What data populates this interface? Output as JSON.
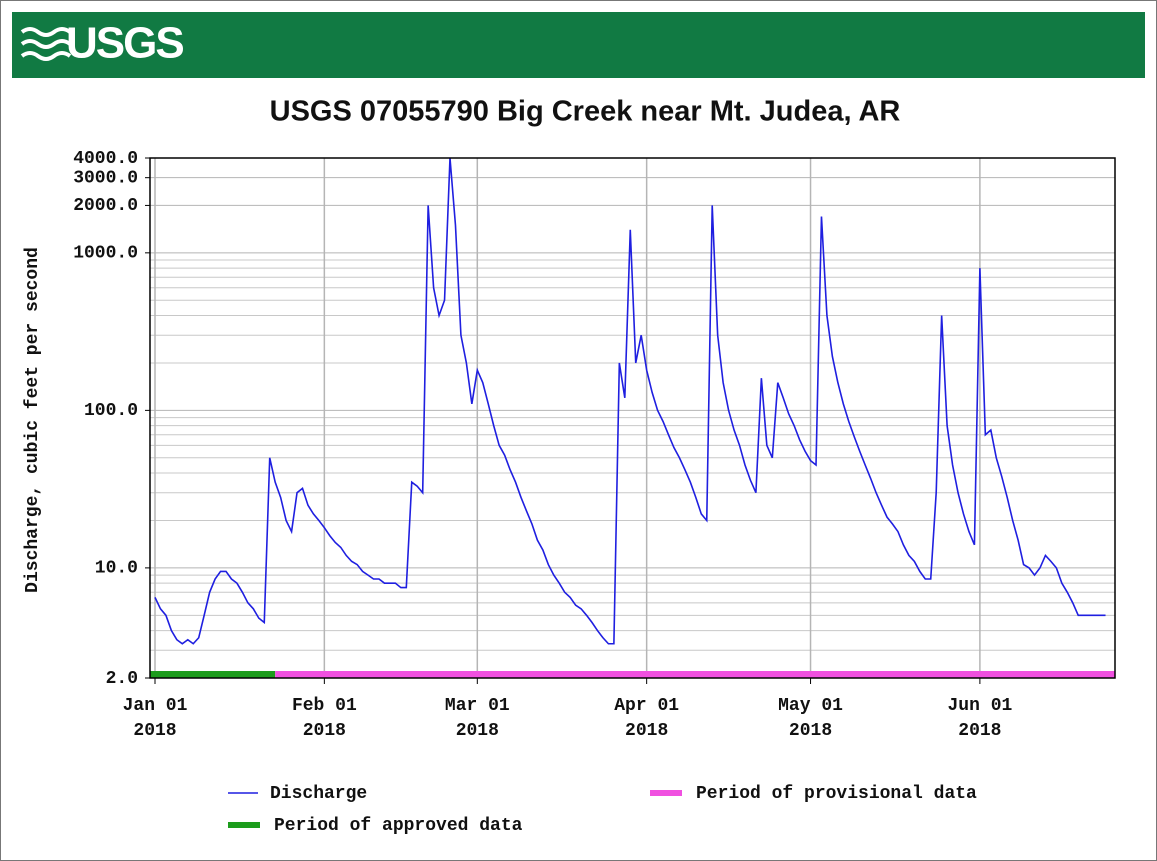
{
  "logo": "USGS",
  "chart_data": {
    "type": "line",
    "title": "USGS 07055790 Big Creek near Mt. Judea, AR",
    "y_label": "Discharge, cubic feet per second",
    "log_y": true,
    "grid": true,
    "ylim": [
      2,
      4000
    ],
    "yticks": [
      {
        "value": 2,
        "label": "2.0"
      },
      {
        "value": 10,
        "label": "10.0"
      },
      {
        "value": 100,
        "label": "100.0"
      },
      {
        "value": 1000,
        "label": "1000.0"
      },
      {
        "value": 2000,
        "label": "2000.0"
      },
      {
        "value": 3000,
        "label": "3000.0"
      },
      {
        "value": 4000,
        "label": "4000.0"
      }
    ],
    "xlim": [
      "2018-01-01",
      "2018-06-25"
    ],
    "xticks": [
      {
        "value": "2018-01-01",
        "label": "Jan 01\n2018"
      },
      {
        "value": "2018-02-01",
        "label": "Feb 01\n2018"
      },
      {
        "value": "2018-03-01",
        "label": "Mar 01\n2018"
      },
      {
        "value": "2018-04-01",
        "label": "Apr 01\n2018"
      },
      {
        "value": "2018-05-01",
        "label": "May 01\n2018"
      },
      {
        "value": "2018-06-01",
        "label": "Jun 01\n2018"
      }
    ],
    "x": [
      "2018-01-01",
      "2018-01-02",
      "2018-01-03",
      "2018-01-04",
      "2018-01-05",
      "2018-01-06",
      "2018-01-07",
      "2018-01-08",
      "2018-01-09",
      "2018-01-10",
      "2018-01-11",
      "2018-01-12",
      "2018-01-13",
      "2018-01-14",
      "2018-01-15",
      "2018-01-16",
      "2018-01-17",
      "2018-01-18",
      "2018-01-19",
      "2018-01-20",
      "2018-01-21",
      "2018-01-22",
      "2018-01-23",
      "2018-01-24",
      "2018-01-25",
      "2018-01-26",
      "2018-01-27",
      "2018-01-28",
      "2018-01-29",
      "2018-01-30",
      "2018-01-31",
      "2018-02-01",
      "2018-02-02",
      "2018-02-03",
      "2018-02-04",
      "2018-02-05",
      "2018-02-06",
      "2018-02-07",
      "2018-02-08",
      "2018-02-09",
      "2018-02-10",
      "2018-02-11",
      "2018-02-12",
      "2018-02-13",
      "2018-02-14",
      "2018-02-15",
      "2018-02-16",
      "2018-02-17",
      "2018-02-18",
      "2018-02-19",
      "2018-02-20",
      "2018-02-21",
      "2018-02-22",
      "2018-02-23",
      "2018-02-24",
      "2018-02-25",
      "2018-02-26",
      "2018-02-27",
      "2018-02-28",
      "2018-03-01",
      "2018-03-02",
      "2018-03-03",
      "2018-03-04",
      "2018-03-05",
      "2018-03-06",
      "2018-03-07",
      "2018-03-08",
      "2018-03-09",
      "2018-03-10",
      "2018-03-11",
      "2018-03-12",
      "2018-03-13",
      "2018-03-14",
      "2018-03-15",
      "2018-03-16",
      "2018-03-17",
      "2018-03-18",
      "2018-03-19",
      "2018-03-20",
      "2018-03-21",
      "2018-03-22",
      "2018-03-23",
      "2018-03-24",
      "2018-03-25",
      "2018-03-26",
      "2018-03-27",
      "2018-03-28",
      "2018-03-29",
      "2018-03-30",
      "2018-03-31",
      "2018-04-01",
      "2018-04-02",
      "2018-04-03",
      "2018-04-04",
      "2018-04-05",
      "2018-04-06",
      "2018-04-07",
      "2018-04-08",
      "2018-04-09",
      "2018-04-10",
      "2018-04-11",
      "2018-04-12",
      "2018-04-13",
      "2018-04-14",
      "2018-04-15",
      "2018-04-16",
      "2018-04-17",
      "2018-04-18",
      "2018-04-19",
      "2018-04-20",
      "2018-04-21",
      "2018-04-22",
      "2018-04-23",
      "2018-04-24",
      "2018-04-25",
      "2018-04-26",
      "2018-04-27",
      "2018-04-28",
      "2018-04-29",
      "2018-04-30",
      "2018-05-01",
      "2018-05-02",
      "2018-05-03",
      "2018-05-04",
      "2018-05-05",
      "2018-05-06",
      "2018-05-07",
      "2018-05-08",
      "2018-05-09",
      "2018-05-10",
      "2018-05-11",
      "2018-05-12",
      "2018-05-13",
      "2018-05-14",
      "2018-05-15",
      "2018-05-16",
      "2018-05-17",
      "2018-05-18",
      "2018-05-19",
      "2018-05-20",
      "2018-05-21",
      "2018-05-22",
      "2018-05-23",
      "2018-05-24",
      "2018-05-25",
      "2018-05-26",
      "2018-05-27",
      "2018-05-28",
      "2018-05-29",
      "2018-05-30",
      "2018-05-31",
      "2018-06-01",
      "2018-06-02",
      "2018-06-03",
      "2018-06-04",
      "2018-06-05",
      "2018-06-06",
      "2018-06-07",
      "2018-06-08",
      "2018-06-09",
      "2018-06-10",
      "2018-06-11",
      "2018-06-12",
      "2018-06-13",
      "2018-06-14",
      "2018-06-15",
      "2018-06-16",
      "2018-06-17",
      "2018-06-18",
      "2018-06-19",
      "2018-06-20",
      "2018-06-21",
      "2018-06-22",
      "2018-06-23",
      "2018-06-24"
    ],
    "series": [
      {
        "name": "Discharge",
        "color": "#1f1fe0",
        "values": [
          6.5,
          5.5,
          5,
          4,
          3.5,
          3.3,
          3.5,
          3.3,
          3.6,
          5,
          7,
          8.5,
          9.5,
          9.5,
          8.5,
          8,
          7,
          6,
          5.5,
          4.8,
          4.5,
          50,
          35,
          28,
          20,
          17,
          30,
          32,
          25,
          22,
          20,
          18,
          16,
          14.5,
          13.5,
          12,
          11,
          10.5,
          9.5,
          9,
          8.5,
          8.5,
          8,
          8,
          8,
          7.5,
          7.5,
          35,
          33,
          30,
          2000,
          600,
          400,
          500,
          4000,
          1500,
          300,
          200,
          110,
          180,
          150,
          110,
          80,
          60,
          52,
          42,
          35,
          28,
          23,
          19,
          15,
          13,
          10.5,
          9,
          8,
          7,
          6.5,
          5.8,
          5.5,
          5,
          4.5,
          4,
          3.6,
          3.3,
          3.3,
          200,
          120,
          1400,
          200,
          300,
          180,
          130,
          100,
          85,
          70,
          58,
          50,
          42,
          35,
          28,
          22,
          20,
          2000,
          300,
          150,
          100,
          75,
          60,
          45,
          36,
          30,
          160,
          60,
          50,
          150,
          120,
          95,
          80,
          65,
          55,
          48,
          45,
          1700,
          400,
          220,
          150,
          110,
          85,
          68,
          55,
          45,
          37,
          30,
          25,
          21,
          19,
          17,
          14,
          12,
          11,
          9.5,
          8.5,
          8.5,
          30,
          400,
          80,
          45,
          30,
          22,
          17,
          14,
          800,
          70,
          75,
          50,
          38,
          28,
          20,
          15,
          10.5,
          10,
          9,
          10,
          12,
          11,
          10,
          8,
          7,
          6,
          5,
          5,
          5,
          5,
          5,
          5
        ]
      }
    ],
    "periods": [
      {
        "name": "Period of approved data",
        "color": "#1c9c1c",
        "start": "2018-01-01",
        "end": "2018-01-23"
      },
      {
        "name": "Period of provisional data",
        "color": "#f050e0",
        "start": "2018-01-23",
        "end": "2018-06-25"
      }
    ]
  }
}
